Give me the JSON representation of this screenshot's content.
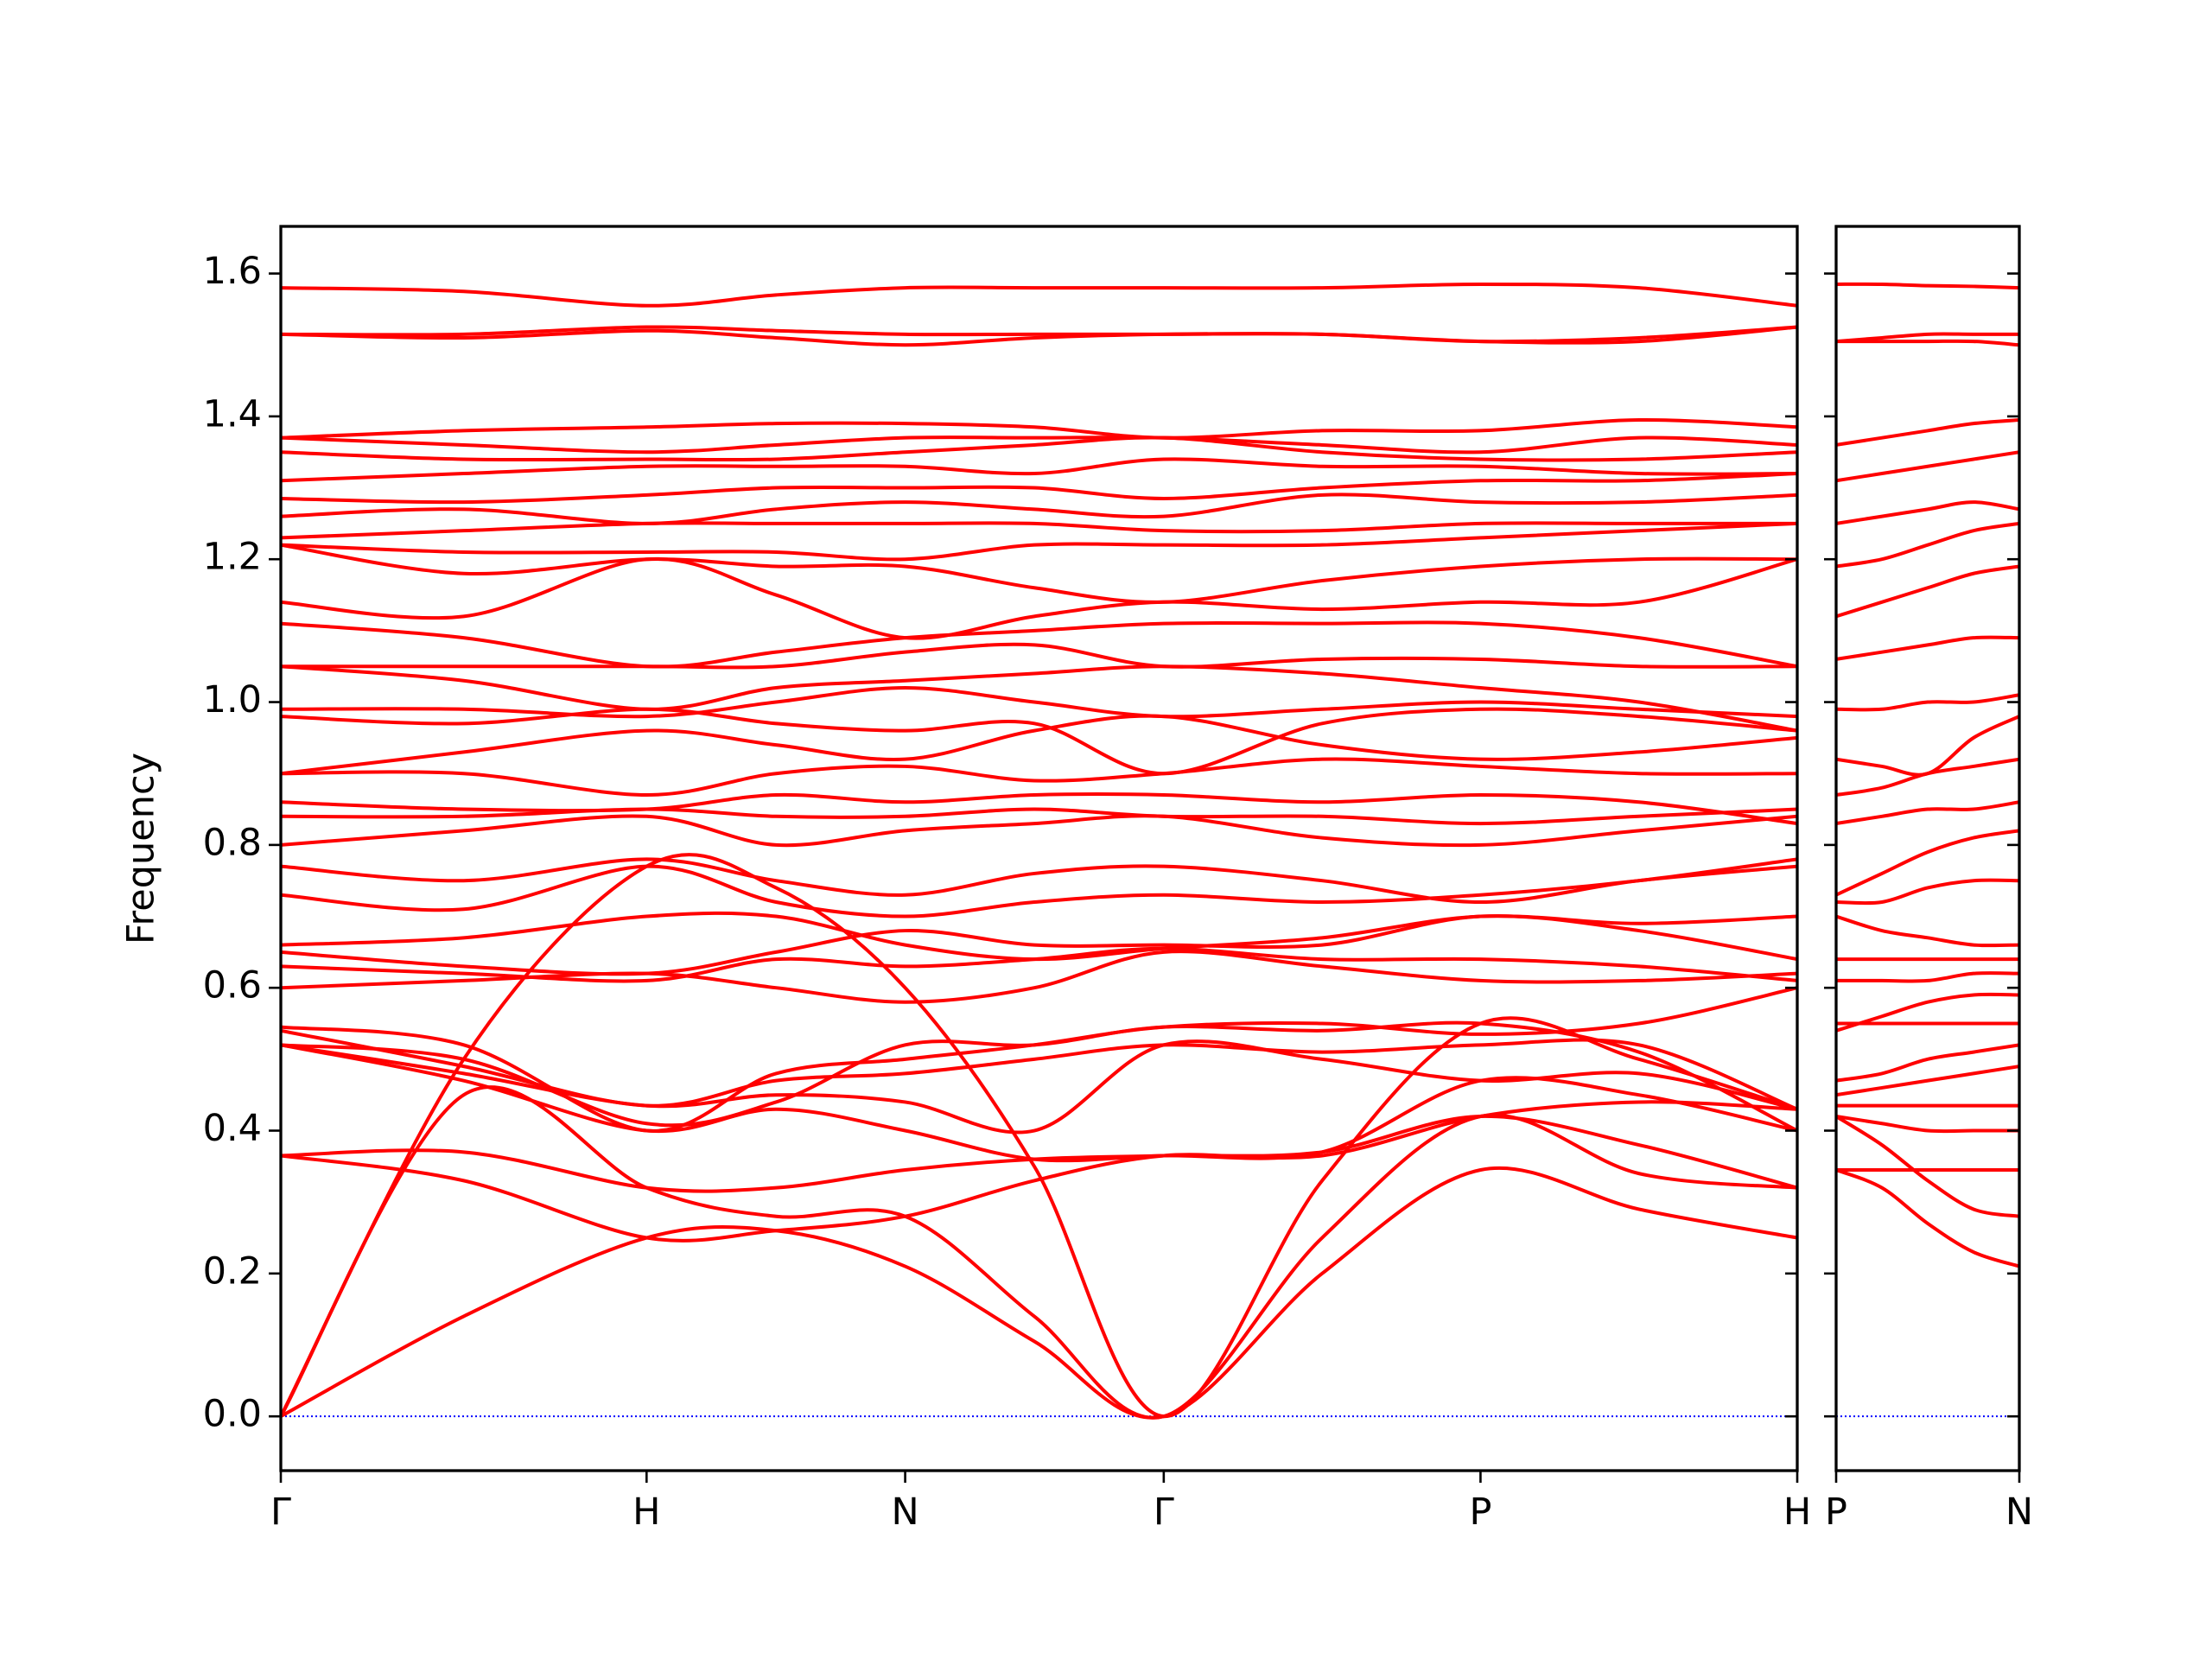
{
  "chart_data": [
    {
      "type": "line",
      "ylabel": "Frequency",
      "color": "#ff0000",
      "x": [
        0,
        0.5,
        1,
        1.354,
        1.707,
        2.06,
        2.414,
        2.847,
        3.28,
        3.713,
        4.146
      ],
      "xlim": [
        0,
        4.146
      ],
      "xticks": [
        {
          "value": 0,
          "label": "Γ"
        },
        {
          "value": 1,
          "label": "H"
        },
        {
          "value": 1.707,
          "label": "N"
        },
        {
          "value": 2.414,
          "label": "Γ"
        },
        {
          "value": 3.28,
          "label": "P"
        },
        {
          "value": 4.146,
          "label": "H"
        }
      ],
      "ylim": [
        -0.076,
        1.666
      ],
      "yticks": [
        {
          "value": 0,
          "label": "0.0"
        },
        0.2,
        0.4,
        0.6,
        0.8,
        {
          "value": 1,
          "label": "1.0"
        },
        1.2,
        1.4,
        1.6
      ],
      "show_ytick_labels": true,
      "hline": {
        "value": 0,
        "color": "#0000ff",
        "style": "dotted"
      },
      "series": [
        {
          "values": [
            0,
            0.14,
            0.25,
            0.26,
            0.21,
            0.105,
            0,
            0.2,
            0.345,
            0.29,
            0.25
          ]
        },
        {
          "values": [
            0,
            0.45,
            0.32,
            0.28,
            0.28,
            0.14,
            0,
            0.25,
            0.42,
            0.34,
            0.32
          ]
        },
        {
          "values": [
            0,
            0.5,
            0.77,
            0.74,
            0.6,
            0.35,
            0,
            0.33,
            0.55,
            0.5,
            0.43
          ]
        },
        {
          "values": [
            0.365,
            0.37,
            0.32,
            0.32,
            0.345,
            0.36,
            0.365,
            0.37,
            0.42,
            0.38,
            0.32
          ]
        },
        {
          "values": [
            0.365,
            0.33,
            0.25,
            0.26,
            0.28,
            0.33,
            0.365,
            0.365,
            0.42,
            0.44,
            0.43
          ]
        },
        {
          "values": [
            0.52,
            0.47,
            0.4,
            0.43,
            0.4,
            0.36,
            0.365,
            0.37,
            0.47,
            0.45,
            0.4
          ]
        },
        {
          "values": [
            0.52,
            0.48,
            0.435,
            0.45,
            0.44,
            0.4,
            0.52,
            0.5,
            0.47,
            0.48,
            0.43
          ]
        },
        {
          "values": [
            0.54,
            0.49,
            0.435,
            0.47,
            0.48,
            0.5,
            0.52,
            0.51,
            0.52,
            0.52,
            0.43
          ]
        },
        {
          "values": [
            0.545,
            0.52,
            0.4,
            0.48,
            0.5,
            0.52,
            0.545,
            0.55,
            0.535,
            0.55,
            0.6
          ]
        },
        {
          "values": [
            0.52,
            0.5,
            0.41,
            0.44,
            0.52,
            0.52,
            0.545,
            0.54,
            0.55,
            0.51,
            0.4
          ]
        },
        {
          "values": [
            0.6,
            0.61,
            0.62,
            0.6,
            0.58,
            0.6,
            0.65,
            0.63,
            0.61,
            0.61,
            0.62
          ]
        },
        {
          "values": [
            0.63,
            0.62,
            0.61,
            0.64,
            0.63,
            0.64,
            0.655,
            0.64,
            0.64,
            0.63,
            0.61
          ]
        },
        {
          "values": [
            0.65,
            0.63,
            0.62,
            0.65,
            0.68,
            0.66,
            0.66,
            0.66,
            0.7,
            0.68,
            0.64
          ]
        },
        {
          "values": [
            0.66,
            0.67,
            0.7,
            0.7,
            0.66,
            0.64,
            0.655,
            0.67,
            0.7,
            0.69,
            0.7
          ]
        },
        {
          "values": [
            0.73,
            0.71,
            0.77,
            0.72,
            0.7,
            0.72,
            0.73,
            0.72,
            0.73,
            0.75,
            0.78
          ]
        },
        {
          "values": [
            0.77,
            0.75,
            0.78,
            0.75,
            0.73,
            0.76,
            0.77,
            0.75,
            0.72,
            0.75,
            0.77
          ]
        },
        {
          "values": [
            0.8,
            0.82,
            0.84,
            0.8,
            0.82,
            0.83,
            0.84,
            0.81,
            0.8,
            0.82,
            0.84
          ]
        },
        {
          "values": [
            0.84,
            0.84,
            0.85,
            0.84,
            0.84,
            0.85,
            0.84,
            0.84,
            0.83,
            0.84,
            0.85
          ]
        },
        {
          "values": [
            0.86,
            0.85,
            0.85,
            0.87,
            0.86,
            0.87,
            0.87,
            0.86,
            0.87,
            0.86,
            0.83
          ]
        },
        {
          "values": [
            0.9,
            0.9,
            0.87,
            0.9,
            0.91,
            0.89,
            0.9,
            0.92,
            0.91,
            0.9,
            0.9
          ]
        },
        {
          "values": [
            0.9,
            0.93,
            0.96,
            0.94,
            0.92,
            0.96,
            0.98,
            0.94,
            0.92,
            0.93,
            0.95
          ]
        },
        {
          "values": [
            0.98,
            0.97,
            0.99,
            0.97,
            0.96,
            0.97,
            0.9,
            0.97,
            0.99,
            0.98,
            0.96
          ]
        },
        {
          "values": [
            0.99,
            0.99,
            0.98,
            1.0,
            1.02,
            1.0,
            0.98,
            0.99,
            1.0,
            0.99,
            0.98
          ]
        },
        {
          "values": [
            1.05,
            1.03,
            0.99,
            1.02,
            1.03,
            1.04,
            1.05,
            1.04,
            1.02,
            1.0,
            0.96
          ]
        },
        {
          "values": [
            1.05,
            1.05,
            1.05,
            1.05,
            1.07,
            1.08,
            1.05,
            1.06,
            1.06,
            1.05,
            1.05
          ]
        },
        {
          "values": [
            1.11,
            1.09,
            1.05,
            1.07,
            1.09,
            1.1,
            1.11,
            1.11,
            1.11,
            1.09,
            1.05
          ]
        },
        {
          "values": [
            1.14,
            1.12,
            1.2,
            1.15,
            1.09,
            1.12,
            1.14,
            1.13,
            1.14,
            1.14,
            1.2
          ]
        },
        {
          "values": [
            1.22,
            1.18,
            1.2,
            1.19,
            1.19,
            1.16,
            1.14,
            1.17,
            1.19,
            1.2,
            1.2
          ]
        },
        {
          "values": [
            1.22,
            1.21,
            1.21,
            1.21,
            1.2,
            1.22,
            1.22,
            1.22,
            1.23,
            1.24,
            1.25
          ]
        },
        {
          "values": [
            1.23,
            1.24,
            1.25,
            1.25,
            1.25,
            1.25,
            1.24,
            1.24,
            1.25,
            1.25,
            1.25
          ]
        },
        {
          "values": [
            1.26,
            1.27,
            1.25,
            1.27,
            1.28,
            1.27,
            1.26,
            1.29,
            1.28,
            1.28,
            1.29
          ]
        },
        {
          "values": [
            1.285,
            1.28,
            1.29,
            1.3,
            1.3,
            1.3,
            1.285,
            1.3,
            1.31,
            1.31,
            1.32
          ]
        },
        {
          "values": [
            1.31,
            1.32,
            1.33,
            1.33,
            1.33,
            1.32,
            1.34,
            1.33,
            1.33,
            1.32,
            1.32
          ]
        },
        {
          "values": [
            1.35,
            1.34,
            1.34,
            1.34,
            1.35,
            1.36,
            1.37,
            1.35,
            1.34,
            1.34,
            1.35
          ]
        },
        {
          "values": [
            1.37,
            1.36,
            1.35,
            1.36,
            1.37,
            1.37,
            1.37,
            1.36,
            1.35,
            1.37,
            1.36
          ]
        },
        {
          "values": [
            1.37,
            1.38,
            1.385,
            1.39,
            1.39,
            1.385,
            1.37,
            1.38,
            1.38,
            1.395,
            1.385
          ]
        },
        {
          "values": [
            1.515,
            1.515,
            1.525,
            1.52,
            1.515,
            1.515,
            1.515,
            1.515,
            1.505,
            1.51,
            1.525
          ]
        },
        {
          "values": [
            1.515,
            1.51,
            1.52,
            1.51,
            1.5,
            1.51,
            1.515,
            1.515,
            1.505,
            1.505,
            1.525
          ]
        },
        {
          "values": [
            1.58,
            1.575,
            1.555,
            1.57,
            1.58,
            1.58,
            1.58,
            1.58,
            1.585,
            1.58,
            1.555
          ]
        }
      ]
    },
    {
      "type": "line",
      "color": "#ff0000",
      "x": [
        0,
        0.125,
        0.25,
        0.375,
        0.5
      ],
      "xlim": [
        0,
        0.5
      ],
      "xticks": [
        {
          "value": 0,
          "label": "P"
        },
        {
          "value": 0.5,
          "label": "N"
        }
      ],
      "ylim": [
        -0.076,
        1.666
      ],
      "yticks": [
        0,
        0.2,
        0.4,
        0.6,
        0.8,
        1,
        1.2,
        1.4,
        1.6
      ],
      "show_ytick_labels": false,
      "hline": {
        "value": 0,
        "color": "#0000ff",
        "style": "dotted"
      },
      "series": [
        {
          "values": [
            0.345,
            0.345,
            0.345,
            0.345,
            0.345
          ]
        },
        {
          "values": [
            0.345,
            0.32,
            0.27,
            0.23,
            0.21
          ]
        },
        {
          "values": [
            0.42,
            0.38,
            0.33,
            0.29,
            0.28
          ]
        },
        {
          "values": [
            0.42,
            0.41,
            0.4,
            0.4,
            0.4
          ]
        },
        {
          "values": [
            0.435,
            0.435,
            0.435,
            0.435,
            0.435
          ]
        },
        {
          "values": [
            0.45,
            0.46,
            0.47,
            0.48,
            0.49
          ]
        },
        {
          "values": [
            0.47,
            0.48,
            0.5,
            0.51,
            0.52
          ]
        },
        {
          "values": [
            0.55,
            0.55,
            0.55,
            0.55,
            0.55
          ]
        },
        {
          "values": [
            0.54,
            0.56,
            0.58,
            0.59,
            0.59
          ]
        },
        {
          "values": [
            0.61,
            0.61,
            0.61,
            0.62,
            0.62
          ]
        },
        {
          "values": [
            0.64,
            0.64,
            0.64,
            0.64,
            0.64
          ]
        },
        {
          "values": [
            0.7,
            0.68,
            0.67,
            0.66,
            0.66
          ]
        },
        {
          "values": [
            0.72,
            0.72,
            0.74,
            0.75,
            0.75
          ]
        },
        {
          "values": [
            0.73,
            0.76,
            0.79,
            0.81,
            0.82
          ]
        },
        {
          "values": [
            0.83,
            0.84,
            0.85,
            0.85,
            0.86
          ]
        },
        {
          "values": [
            0.87,
            0.88,
            0.9,
            0.91,
            0.92
          ]
        },
        {
          "values": [
            0.92,
            0.91,
            0.9,
            0.95,
            0.98
          ]
        },
        {
          "values": [
            0.99,
            0.99,
            1.0,
            1.0,
            1.01
          ]
        },
        {
          "values": [
            1.06,
            1.07,
            1.08,
            1.09,
            1.09
          ]
        },
        {
          "values": [
            1.12,
            1.14,
            1.16,
            1.18,
            1.19
          ]
        },
        {
          "values": [
            1.19,
            1.2,
            1.22,
            1.24,
            1.25
          ]
        },
        {
          "values": [
            1.25,
            1.26,
            1.27,
            1.28,
            1.27
          ]
        },
        {
          "values": [
            1.31,
            1.32,
            1.33,
            1.34,
            1.35
          ]
        },
        {
          "values": [
            1.36,
            1.37,
            1.38,
            1.39,
            1.395
          ]
        },
        {
          "values": [
            1.505,
            1.505,
            1.505,
            1.505,
            1.5
          ]
        },
        {
          "values": [
            1.505,
            1.51,
            1.515,
            1.515,
            1.515
          ]
        },
        {
          "values": [
            1.585,
            1.585,
            1.583,
            1.582,
            1.58
          ]
        }
      ]
    }
  ]
}
